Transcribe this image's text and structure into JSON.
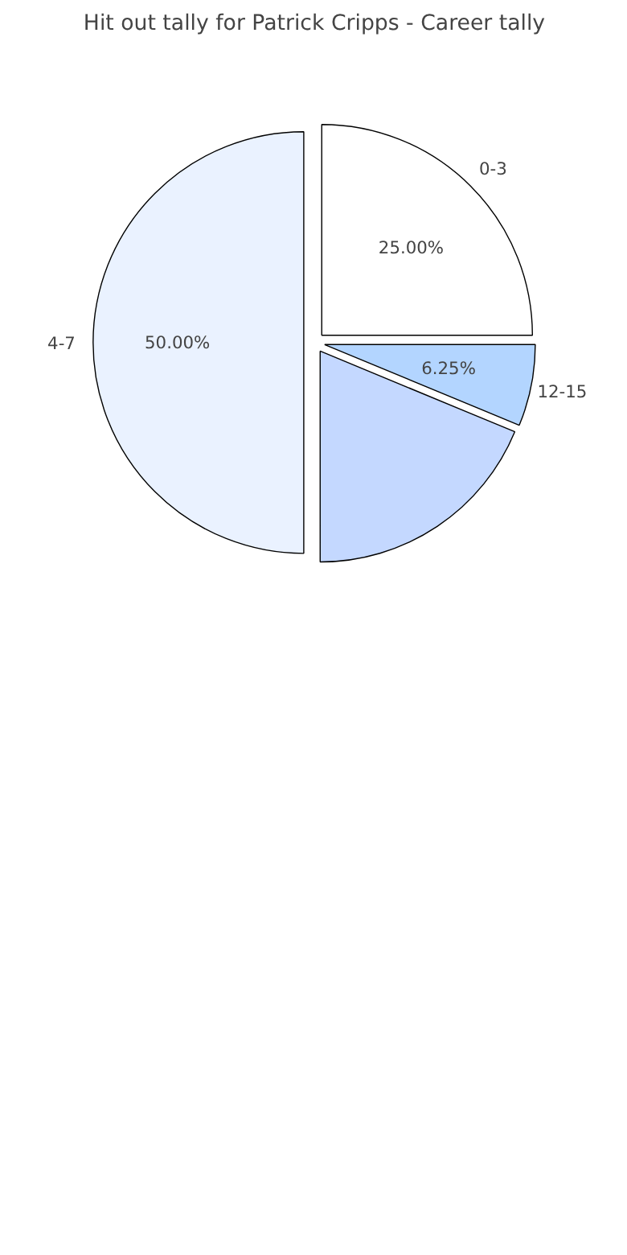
{
  "chart_data": {
    "type": "pie",
    "title": "Hit out tally for Patrick Cripps - Career tally",
    "categories": [
      "0-3",
      "12-15",
      null,
      "4-7"
    ],
    "values": [
      25,
      6.25,
      18.75,
      50
    ],
    "colors": [
      "#ffffff",
      "#b3d5ff",
      "#c4d8ff",
      "#eaf2ff"
    ],
    "value_labels": [
      "25.00%",
      "6.25%",
      null,
      "50.00%"
    ]
  }
}
